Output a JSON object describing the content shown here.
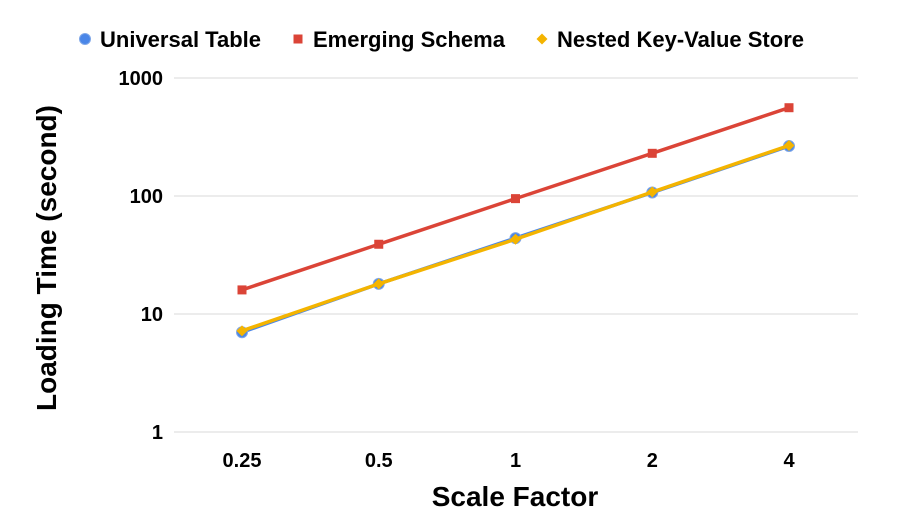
{
  "chart_data": {
    "type": "line",
    "title": "",
    "xlabel": "Scale Factor",
    "ylabel": "Loading Time (second)",
    "categories": [
      "0.25",
      "0.5",
      "1",
      "2",
      "4"
    ],
    "yscale": "log",
    "ylim": [
      1,
      1000
    ],
    "yticks": [
      "1",
      "10",
      "100",
      "1000"
    ],
    "grid": true,
    "legend_position": "top",
    "series": [
      {
        "name": "Universal Table",
        "color": "#4a86e8",
        "marker": "circle",
        "values": [
          7,
          18,
          44,
          107,
          265
        ]
      },
      {
        "name": "Emerging Schema",
        "color": "#db4437",
        "marker": "square",
        "values": [
          16,
          39,
          95,
          230,
          560
        ]
      },
      {
        "name": "Nested Key-Value Store",
        "color": "#f4b400",
        "marker": "diamond",
        "values": [
          7.2,
          18,
          43,
          108,
          268
        ]
      }
    ]
  }
}
